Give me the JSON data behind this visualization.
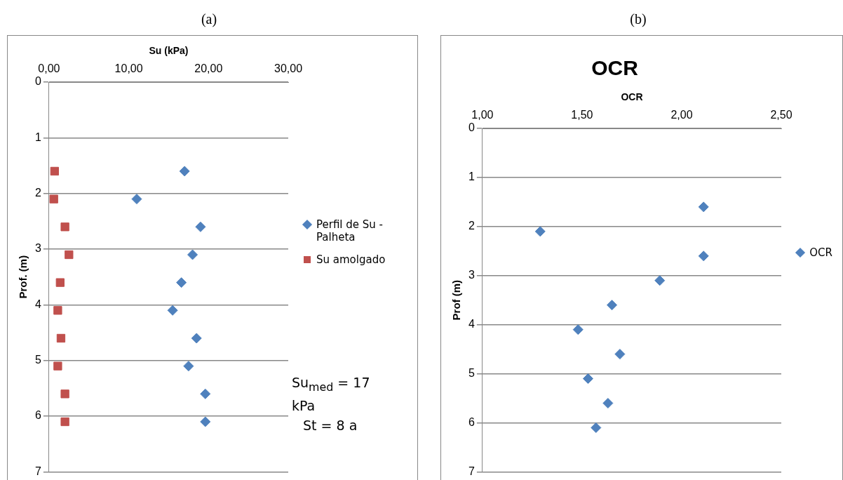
{
  "chart_data": [
    {
      "type": "scatter",
      "xlabel": "Su (kPa)",
      "ylabel": "Prof. (m)",
      "annotations": [
        "(a)",
        "Su$_{med}$ = 17 kPa",
        "St = 8 a"
      ],
      "xlim": [
        0,
        30
      ],
      "xticks": [
        {
          "value": 0,
          "label": "0,00"
        },
        {
          "value": 10,
          "label": "10,00"
        },
        {
          "value": 20,
          "label": "20,00"
        },
        {
          "value": 30,
          "label": "30,00"
        }
      ],
      "ylim": [
        7,
        0
      ],
      "yticks": [
        0,
        1,
        2,
        3,
        4,
        5,
        6,
        7
      ],
      "grid": "y",
      "legend": "right",
      "series": [
        {
          "name": "Perfil de Su - Palheta",
          "color": "#4f81bd",
          "marker": "diamond",
          "x": [
            17.0,
            11.0,
            19.0,
            18.0,
            16.6,
            15.5,
            18.5,
            17.5,
            19.6,
            19.6
          ],
          "values": [
            1.6,
            2.1,
            2.6,
            3.1,
            3.6,
            4.1,
            4.6,
            5.1,
            5.6,
            6.1
          ]
        },
        {
          "name": "Su amolgado",
          "color": "#c0504d",
          "marker": "square",
          "x": [
            0.7,
            0.6,
            2.0,
            2.5,
            1.4,
            1.1,
            1.5,
            1.1,
            2.0,
            2.0
          ],
          "values": [
            1.6,
            2.1,
            2.6,
            3.1,
            3.6,
            4.1,
            4.6,
            5.1,
            5.6,
            6.1
          ]
        }
      ]
    },
    {
      "type": "scatter",
      "title": "OCR",
      "xlabel": "OCR",
      "ylabel": "Prof (m)",
      "annotations": [
        "(b)"
      ],
      "xlim": [
        1,
        2.5
      ],
      "xticks": [
        {
          "value": 1,
          "label": "1,00"
        },
        {
          "value": 1.5,
          "label": "1,50"
        },
        {
          "value": 2,
          "label": "2,00"
        },
        {
          "value": 2.5,
          "label": "2,50"
        }
      ],
      "ylim": [
        7,
        0
      ],
      "yticks": [
        0,
        1,
        2,
        3,
        4,
        5,
        6,
        7
      ],
      "grid": "y",
      "legend": "right",
      "series": [
        {
          "name": "OCR",
          "color": "#4f81bd",
          "marker": "diamond",
          "x": [
            2.11,
            1.29,
            2.11,
            1.89,
            1.65,
            1.48,
            1.69,
            1.53,
            1.63,
            1.57
          ],
          "values": [
            1.6,
            2.1,
            2.6,
            3.1,
            3.6,
            4.1,
            4.6,
            5.1,
            5.6,
            6.1
          ]
        }
      ]
    }
  ]
}
